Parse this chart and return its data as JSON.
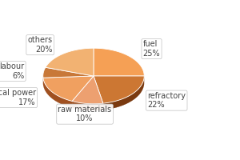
{
  "labels": [
    "fuel",
    "refractory",
    "raw materials",
    "electrical power",
    "labour",
    "others"
  ],
  "values": [
    25,
    22,
    10,
    17,
    6,
    20
  ],
  "top_colors": [
    "#F5A055",
    "#CC7733",
    "#EDA070",
    "#F0A060",
    "#C87838",
    "#F2B272"
  ],
  "side_colors": [
    "#A05020",
    "#7A3A10",
    "#A05020",
    "#A05020",
    "#7A3A10",
    "#A05020"
  ],
  "edge_color": "#ffffff",
  "bg_color": "#ffffff",
  "text_color": "#444444",
  "fontsize": 7.0,
  "startangle": 90,
  "depth": 0.13
}
